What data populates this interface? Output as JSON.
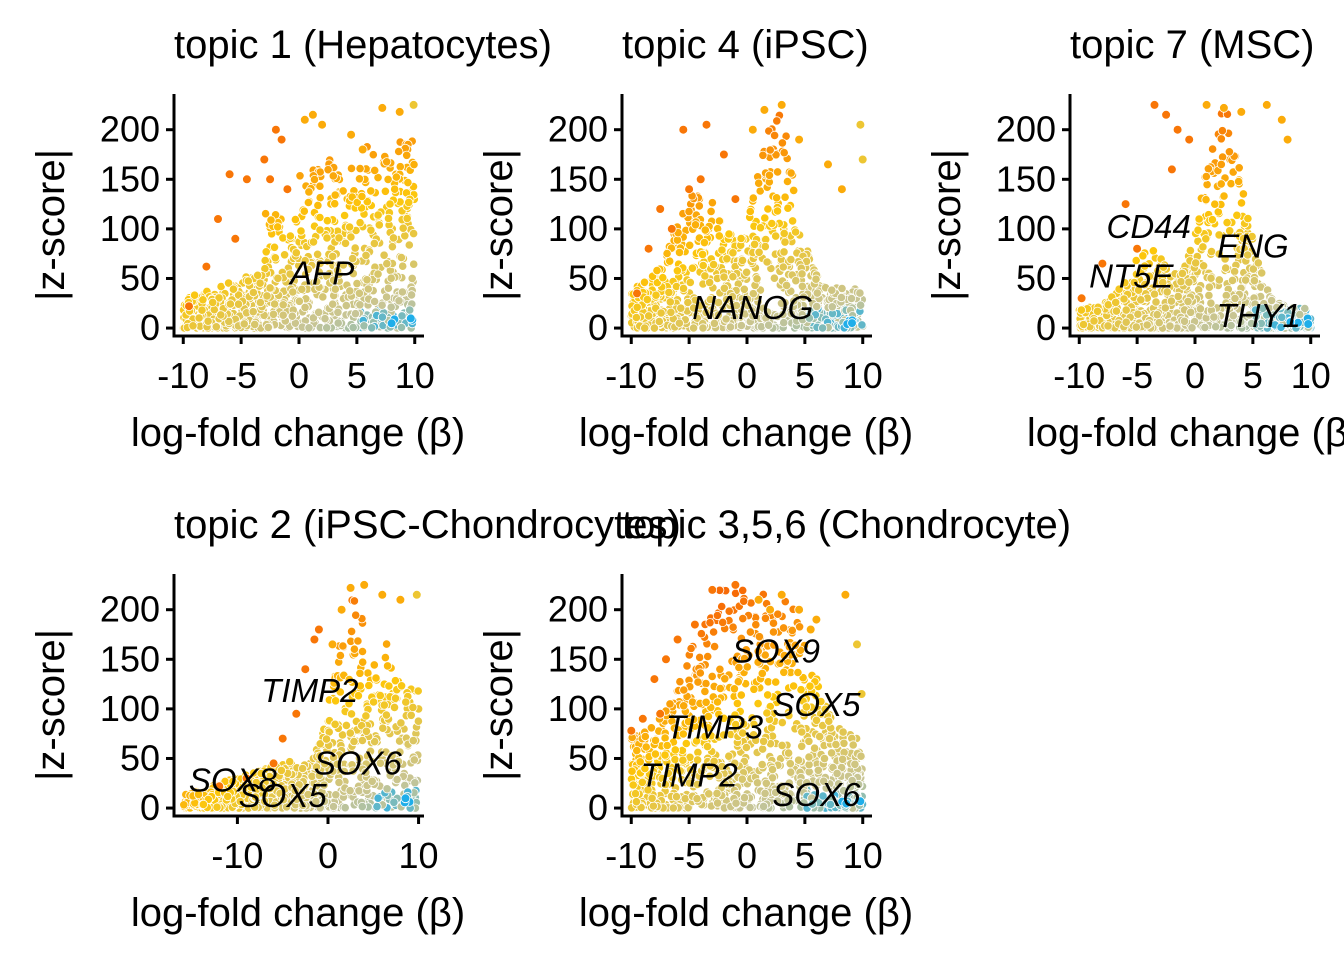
{
  "colors": {
    "low": "#1faee9",
    "mid_low": "#c7c596",
    "mid": "#fcc70c",
    "high": "#f76a06"
  },
  "chart_data": [
    {
      "type": "scatter",
      "title": "topic 1 (Hepatocytes)",
      "xlabel": "log-fold change (β)",
      "ylabel": "|z-score|",
      "xticks": [
        "-10",
        "-5",
        "0",
        "5",
        "10"
      ],
      "yticks": [
        "0",
        "50",
        "100",
        "150",
        "200"
      ],
      "xlim": [
        -10.8,
        10.8
      ],
      "ylim": [
        -8,
        236
      ],
      "grid": false,
      "shape": "t1",
      "labels": [
        {
          "text": "AFP",
          "x": 2,
          "y": 55
        }
      ],
      "points": [
        [
          -9.5,
          22
        ],
        [
          -8,
          62
        ],
        [
          -6,
          155
        ],
        [
          -4.5,
          150
        ],
        [
          -3,
          170
        ],
        [
          -2,
          200
        ],
        [
          -1.5,
          190
        ],
        [
          1.2,
          215
        ],
        [
          2,
          205
        ],
        [
          4.5,
          195
        ],
        [
          5.5,
          180
        ],
        [
          7.2,
          222
        ],
        [
          8.7,
          218
        ],
        [
          9.9,
          225
        ],
        [
          -1,
          140
        ],
        [
          0.5,
          210
        ],
        [
          -7,
          110
        ],
        [
          -5.5,
          90
        ],
        [
          -2.5,
          150
        ]
      ]
    },
    {
      "type": "scatter",
      "title": "topic 4 (iPSC)",
      "xlabel": "log-fold change (β)",
      "ylabel": "|z-score|",
      "xticks": [
        "-10",
        "-5",
        "0",
        "5",
        "10"
      ],
      "yticks": [
        "0",
        "50",
        "100",
        "150",
        "200"
      ],
      "xlim": [
        -10.8,
        10.8
      ],
      "ylim": [
        -8,
        236
      ],
      "grid": false,
      "shape": "t4",
      "labels": [
        {
          "text": "NANOG",
          "x": 0.5,
          "y": 20
        }
      ],
      "points": [
        [
          -9.5,
          35
        ],
        [
          -8.5,
          80
        ],
        [
          -6.5,
          100
        ],
        [
          -5.5,
          200
        ],
        [
          -4,
          150
        ],
        [
          -3.5,
          205
        ],
        [
          -2,
          175
        ],
        [
          -1,
          130
        ],
        [
          0.5,
          200
        ],
        [
          1.5,
          220
        ],
        [
          3,
          225
        ],
        [
          4.5,
          190
        ],
        [
          7,
          165
        ],
        [
          8.2,
          140
        ],
        [
          9.8,
          205
        ],
        [
          10,
          170
        ],
        [
          -7.5,
          120
        ],
        [
          -5,
          140
        ]
      ]
    },
    {
      "type": "scatter",
      "title": "topic 7 (MSC)",
      "xlabel": "log-fold change (β)",
      "ylabel": "|z-score|",
      "xticks": [
        "-10",
        "-5",
        "0",
        "5",
        "10"
      ],
      "yticks": [
        "0",
        "50",
        "100",
        "150",
        "200"
      ],
      "xlim": [
        -10.8,
        10.8
      ],
      "ylim": [
        -8,
        236
      ],
      "grid": false,
      "shape": "t7",
      "labels": [
        {
          "text": "CD44",
          "x": -4,
          "y": 102
        },
        {
          "text": "ENG",
          "x": 5,
          "y": 82
        },
        {
          "text": "NT5E",
          "x": -5.5,
          "y": 52
        },
        {
          "text": "THY1",
          "x": 5.5,
          "y": 12
        }
      ],
      "points": [
        [
          -9.8,
          30
        ],
        [
          -8,
          65
        ],
        [
          -6,
          125
        ],
        [
          -3.5,
          225
        ],
        [
          -2.5,
          215
        ],
        [
          -1.5,
          200
        ],
        [
          -0.5,
          190
        ],
        [
          1,
          225
        ],
        [
          2.5,
          222
        ],
        [
          4,
          218
        ],
        [
          6.2,
          225
        ],
        [
          7.5,
          210
        ],
        [
          8,
          190
        ],
        [
          -5,
          80
        ],
        [
          -2,
          160
        ]
      ]
    },
    {
      "type": "scatter",
      "title": "topic 2 (iPSC-Chondrocytes)",
      "xlabel": "log-fold change (β)",
      "ylabel": "|z-score|",
      "xticks": [
        "-10",
        "0",
        "10"
      ],
      "yticks": [
        "0",
        "50",
        "100",
        "150",
        "200"
      ],
      "xlim": [
        -17,
        10.6
      ],
      "ylim": [
        -8,
        236
      ],
      "grid": false,
      "shape": "t2",
      "labels": [
        {
          "text": "TIMP2",
          "x": -2,
          "y": 118
        },
        {
          "text": "SOX6",
          "x": 3.3,
          "y": 45
        },
        {
          "text": "SOX8",
          "x": -10.5,
          "y": 28
        },
        {
          "text": "SOX5",
          "x": -5,
          "y": 12
        }
      ],
      "points": [
        [
          -12,
          22
        ],
        [
          -9,
          30
        ],
        [
          -6,
          45
        ],
        [
          -3.5,
          95
        ],
        [
          -1.5,
          170
        ],
        [
          -1,
          180
        ],
        [
          0.5,
          165
        ],
        [
          1.5,
          200
        ],
        [
          2.5,
          222
        ],
        [
          4,
          225
        ],
        [
          6,
          215
        ],
        [
          8,
          210
        ],
        [
          9.8,
          215
        ],
        [
          -2.5,
          140
        ],
        [
          -5,
          70
        ]
      ]
    },
    {
      "type": "scatter",
      "title": "topic 3,5,6 (Chondrocyte)",
      "xlabel": "log-fold change (β)",
      "ylabel": "|z-score|",
      "xticks": [
        "-10",
        "-5",
        "0",
        "5",
        "10"
      ],
      "yticks": [
        "0",
        "50",
        "100",
        "150",
        "200"
      ],
      "xlim": [
        -10.8,
        10.8
      ],
      "ylim": [
        -8,
        236
      ],
      "grid": false,
      "shape": "t356",
      "labels": [
        {
          "text": "SOX9",
          "x": 2.5,
          "y": 158
        },
        {
          "text": "SOX5",
          "x": 6,
          "y": 104
        },
        {
          "text": "TIMP3",
          "x": -2.8,
          "y": 81
        },
        {
          "text": "TIMP2",
          "x": -5,
          "y": 33
        },
        {
          "text": "SOX6",
          "x": 6,
          "y": 13
        }
      ],
      "points": [
        [
          -10,
          78
        ],
        [
          -9,
          90
        ],
        [
          -8,
          130
        ],
        [
          -7,
          150
        ],
        [
          -6,
          170
        ],
        [
          -4.5,
          185
        ],
        [
          -3,
          220
        ],
        [
          -1,
          225
        ],
        [
          1,
          210
        ],
        [
          3,
          215
        ],
        [
          4.5,
          200
        ],
        [
          6,
          190
        ],
        [
          8.5,
          215
        ],
        [
          9.5,
          165
        ],
        [
          9.9,
          115
        ],
        [
          -7.5,
          95
        ],
        [
          5.5,
          180
        ],
        [
          2,
          200
        ]
      ]
    }
  ]
}
